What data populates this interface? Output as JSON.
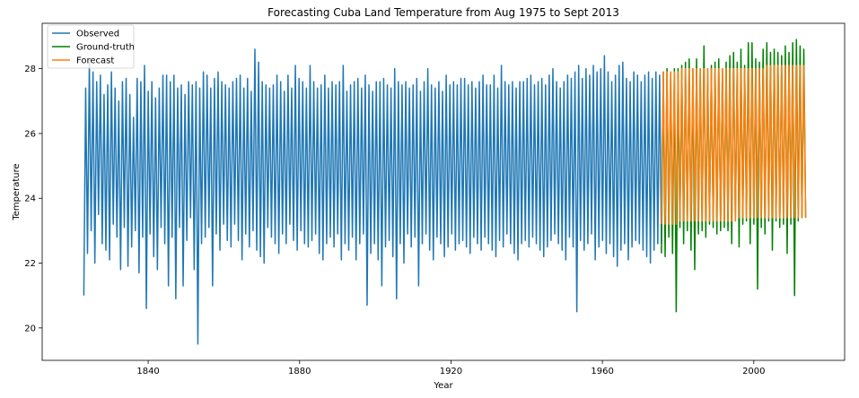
{
  "chart_data": {
    "type": "line",
    "title": "Forecasting Cuba Land Temperature from Aug 1975 to Sept 2013",
    "xlabel": "Year",
    "ylabel": "Temperature",
    "xlim": [
      1812,
      2024
    ],
    "ylim": [
      19.0,
      29.4
    ],
    "x_ticks": [
      1840,
      1880,
      1920,
      1960,
      2000
    ],
    "y_ticks": [
      20,
      22,
      24,
      26,
      28
    ],
    "grid": false,
    "legend_position": "top-left",
    "series": [
      {
        "name": "Observed",
        "color": "#1f77b4",
        "x_start": 1823,
        "x_end": 1975.6,
        "annual_cycle": true,
        "peak_values": [
          27.4,
          28.2,
          27.9,
          27.6,
          27.8,
          27.2,
          27.5,
          27.9,
          27.4,
          27.0,
          27.6,
          27.7,
          27.2,
          26.5,
          27.7,
          27.6,
          28.1,
          27.3,
          27.6,
          27.1,
          27.4,
          27.8,
          27.8,
          27.6,
          27.8,
          27.4,
          27.5,
          27.2,
          27.6,
          27.5,
          27.6,
          27.4,
          27.9,
          27.8,
          27.4,
          27.7,
          27.9,
          27.6,
          27.5,
          27.4,
          27.6,
          27.7,
          27.8,
          27.4,
          27.7,
          27.3,
          28.6,
          28.2,
          27.6,
          27.5,
          27.4,
          27.5,
          27.8,
          27.6,
          27.3,
          27.8,
          27.4,
          28.1,
          27.7,
          27.6,
          27.4,
          28.1,
          27.6,
          27.4,
          27.5,
          27.8,
          27.4,
          27.6,
          27.5,
          27.6,
          28.1,
          27.3,
          27.5,
          27.6,
          27.7,
          27.4,
          27.8,
          27.5,
          27.3,
          27.6,
          27.6,
          27.7,
          27.5,
          27.4,
          28.0,
          27.6,
          27.5,
          27.6,
          27.4,
          27.5,
          27.7,
          27.3,
          27.6,
          28.0,
          27.5,
          27.4,
          27.6,
          27.3,
          27.8,
          27.5,
          27.6,
          27.5,
          27.7,
          27.7,
          27.5,
          27.6,
          27.4,
          27.6,
          27.8,
          27.5,
          27.5,
          27.8,
          27.4,
          28.1,
          27.6,
          27.5,
          27.6,
          27.4,
          27.6,
          27.6,
          27.7,
          27.8,
          27.5,
          27.6,
          27.7,
          27.5,
          27.8,
          28.0,
          27.6,
          27.4,
          27.6,
          27.8,
          27.7,
          27.9,
          28.1,
          27.7,
          28.0,
          27.8,
          28.1,
          27.9,
          28.0,
          28.4,
          27.9,
          27.6,
          27.8,
          28.1,
          28.2,
          27.7,
          27.6,
          27.9,
          27.8,
          27.6,
          27.8,
          27.9,
          27.7,
          27.9,
          27.8
        ],
        "trough_values": [
          21.0,
          22.3,
          23.0,
          22.0,
          23.5,
          22.6,
          22.4,
          22.1,
          23.2,
          22.8,
          21.8,
          23.1,
          21.9,
          22.5,
          23.0,
          21.7,
          22.8,
          20.6,
          22.9,
          22.2,
          21.8,
          23.1,
          22.6,
          21.3,
          22.8,
          20.9,
          23.1,
          21.3,
          22.7,
          23.4,
          21.8,
          19.5,
          22.6,
          22.8,
          23.1,
          21.3,
          22.9,
          22.4,
          23.2,
          22.7,
          22.5,
          23.2,
          22.7,
          22.1,
          22.9,
          22.5,
          23.0,
          22.4,
          22.2,
          22.0,
          23.1,
          22.8,
          22.6,
          22.3,
          22.9,
          22.6,
          23.2,
          22.7,
          22.4,
          23.0,
          22.6,
          22.5,
          22.7,
          22.9,
          22.3,
          22.1,
          22.6,
          22.8,
          22.5,
          22.9,
          22.1,
          22.6,
          22.4,
          22.8,
          22.1,
          22.6,
          22.9,
          20.7,
          22.3,
          22.6,
          22.1,
          21.3,
          22.5,
          22.7,
          22.2,
          20.9,
          22.6,
          22.0,
          22.9,
          22.5,
          22.8,
          21.3,
          22.6,
          22.9,
          22.4,
          22.1,
          22.8,
          22.6,
          22.2,
          22.5,
          22.9,
          22.4,
          22.6,
          22.7,
          22.5,
          22.3,
          22.8,
          22.6,
          22.4,
          22.8,
          22.6,
          22.4,
          22.2,
          22.7,
          22.5,
          22.9,
          22.6,
          22.3,
          22.1,
          22.6,
          22.7,
          22.5,
          22.8,
          22.6,
          22.4,
          22.2,
          22.5,
          22.7,
          22.9,
          22.6,
          22.4,
          22.1,
          22.8,
          22.5,
          20.5,
          22.7,
          22.4,
          22.6,
          22.9,
          22.1,
          22.5,
          22.7,
          22.3,
          22.6,
          22.2,
          21.9,
          22.4,
          22.6,
          22.1,
          22.5,
          22.7,
          22.6,
          22.4,
          22.2,
          22.0,
          22.4,
          22.6
        ]
      },
      {
        "name": "Ground-truth",
        "color": "#008000",
        "x_start": 1975.6,
        "x_end": 2013.7,
        "annual_cycle": true,
        "peak_values": [
          27.9,
          28.0,
          27.9,
          28.0,
          28.0,
          28.1,
          28.2,
          28.3,
          28.0,
          28.3,
          28.0,
          28.7,
          28.0,
          28.1,
          28.2,
          28.3,
          28.0,
          28.2,
          28.4,
          28.5,
          28.2,
          28.6,
          28.1,
          28.8,
          28.8,
          28.3,
          28.2,
          28.6,
          28.8,
          28.5,
          28.6,
          28.5,
          28.4,
          28.7,
          28.5,
          28.8,
          28.9,
          28.7,
          28.6
        ],
        "trough_values": [
          22.3,
          22.2,
          22.8,
          22.3,
          20.5,
          23.1,
          22.6,
          23.0,
          22.4,
          21.8,
          22.9,
          23.0,
          22.8,
          23.2,
          23.1,
          22.9,
          23.0,
          23.1,
          23.0,
          22.6,
          23.3,
          22.5,
          23.2,
          23.3,
          22.6,
          23.2,
          21.2,
          23.1,
          22.9,
          23.3,
          22.4,
          23.3,
          23.1,
          23.2,
          22.3,
          23.2,
          21.0,
          23.3,
          23.4
        ]
      },
      {
        "name": "Forecast",
        "color": "#ff7f0e",
        "x_start": 1975.6,
        "x_end": 2013.7,
        "annual_cycle": true,
        "peak_values": [
          27.9,
          27.9,
          27.9,
          27.9,
          27.9,
          28.0,
          28.0,
          28.0,
          28.0,
          28.0,
          28.0,
          28.0,
          28.0,
          28.0,
          28.0,
          28.0,
          28.0,
          28.0,
          28.0,
          28.0,
          28.0,
          28.0,
          28.0,
          28.0,
          28.0,
          28.0,
          28.0,
          28.0,
          28.1,
          28.1,
          28.1,
          28.1,
          28.1,
          28.1,
          28.1,
          28.1,
          28.1,
          28.1,
          28.1
        ],
        "trough_values": [
          23.2,
          23.2,
          23.2,
          23.2,
          23.2,
          23.3,
          23.3,
          23.3,
          23.3,
          23.3,
          23.3,
          23.3,
          23.3,
          23.3,
          23.3,
          23.3,
          23.3,
          23.3,
          23.3,
          23.3,
          23.3,
          23.4,
          23.4,
          23.4,
          23.4,
          23.4,
          23.4,
          23.4,
          23.4,
          23.4,
          23.4,
          23.4,
          23.4,
          23.4,
          23.4,
          23.4,
          23.4,
          23.4,
          23.4
        ]
      }
    ]
  }
}
